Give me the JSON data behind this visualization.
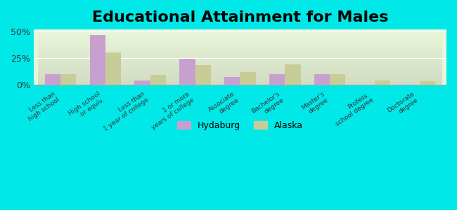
{
  "title": "Educational Attainment for Males",
  "categories": [
    "Less than\nhigh school",
    "High school\nor equiv.",
    "Less than\n1 year of college",
    "1 or more\nyears of college",
    "Associate\ndegree",
    "Bachelor's\ndegree",
    "Master's\ndegree",
    "Profess.\nschool degree",
    "Doctorate\ndegree"
  ],
  "hydaburg": [
    10,
    47,
    4,
    24,
    7,
    10,
    10,
    0,
    0
  ],
  "alaska": [
    10,
    30,
    9,
    18,
    12,
    19,
    10,
    4,
    3
  ],
  "hydaburg_color": "#c8a0d0",
  "alaska_color": "#c8cc96",
  "background_top": "#e8f0d8",
  "background_bottom": "#f8fce8",
  "chart_bg_top": "#d8e8c8",
  "chart_bg_bottom": "#f0f8e0",
  "outer_bg": "#00e8e8",
  "ylim": [
    0,
    52
  ],
  "yticks": [
    0,
    25,
    50
  ],
  "ytick_labels": [
    "0%",
    "25%",
    "50%"
  ],
  "title_fontsize": 16,
  "legend_labels": [
    "Hydaburg",
    "Alaska"
  ]
}
